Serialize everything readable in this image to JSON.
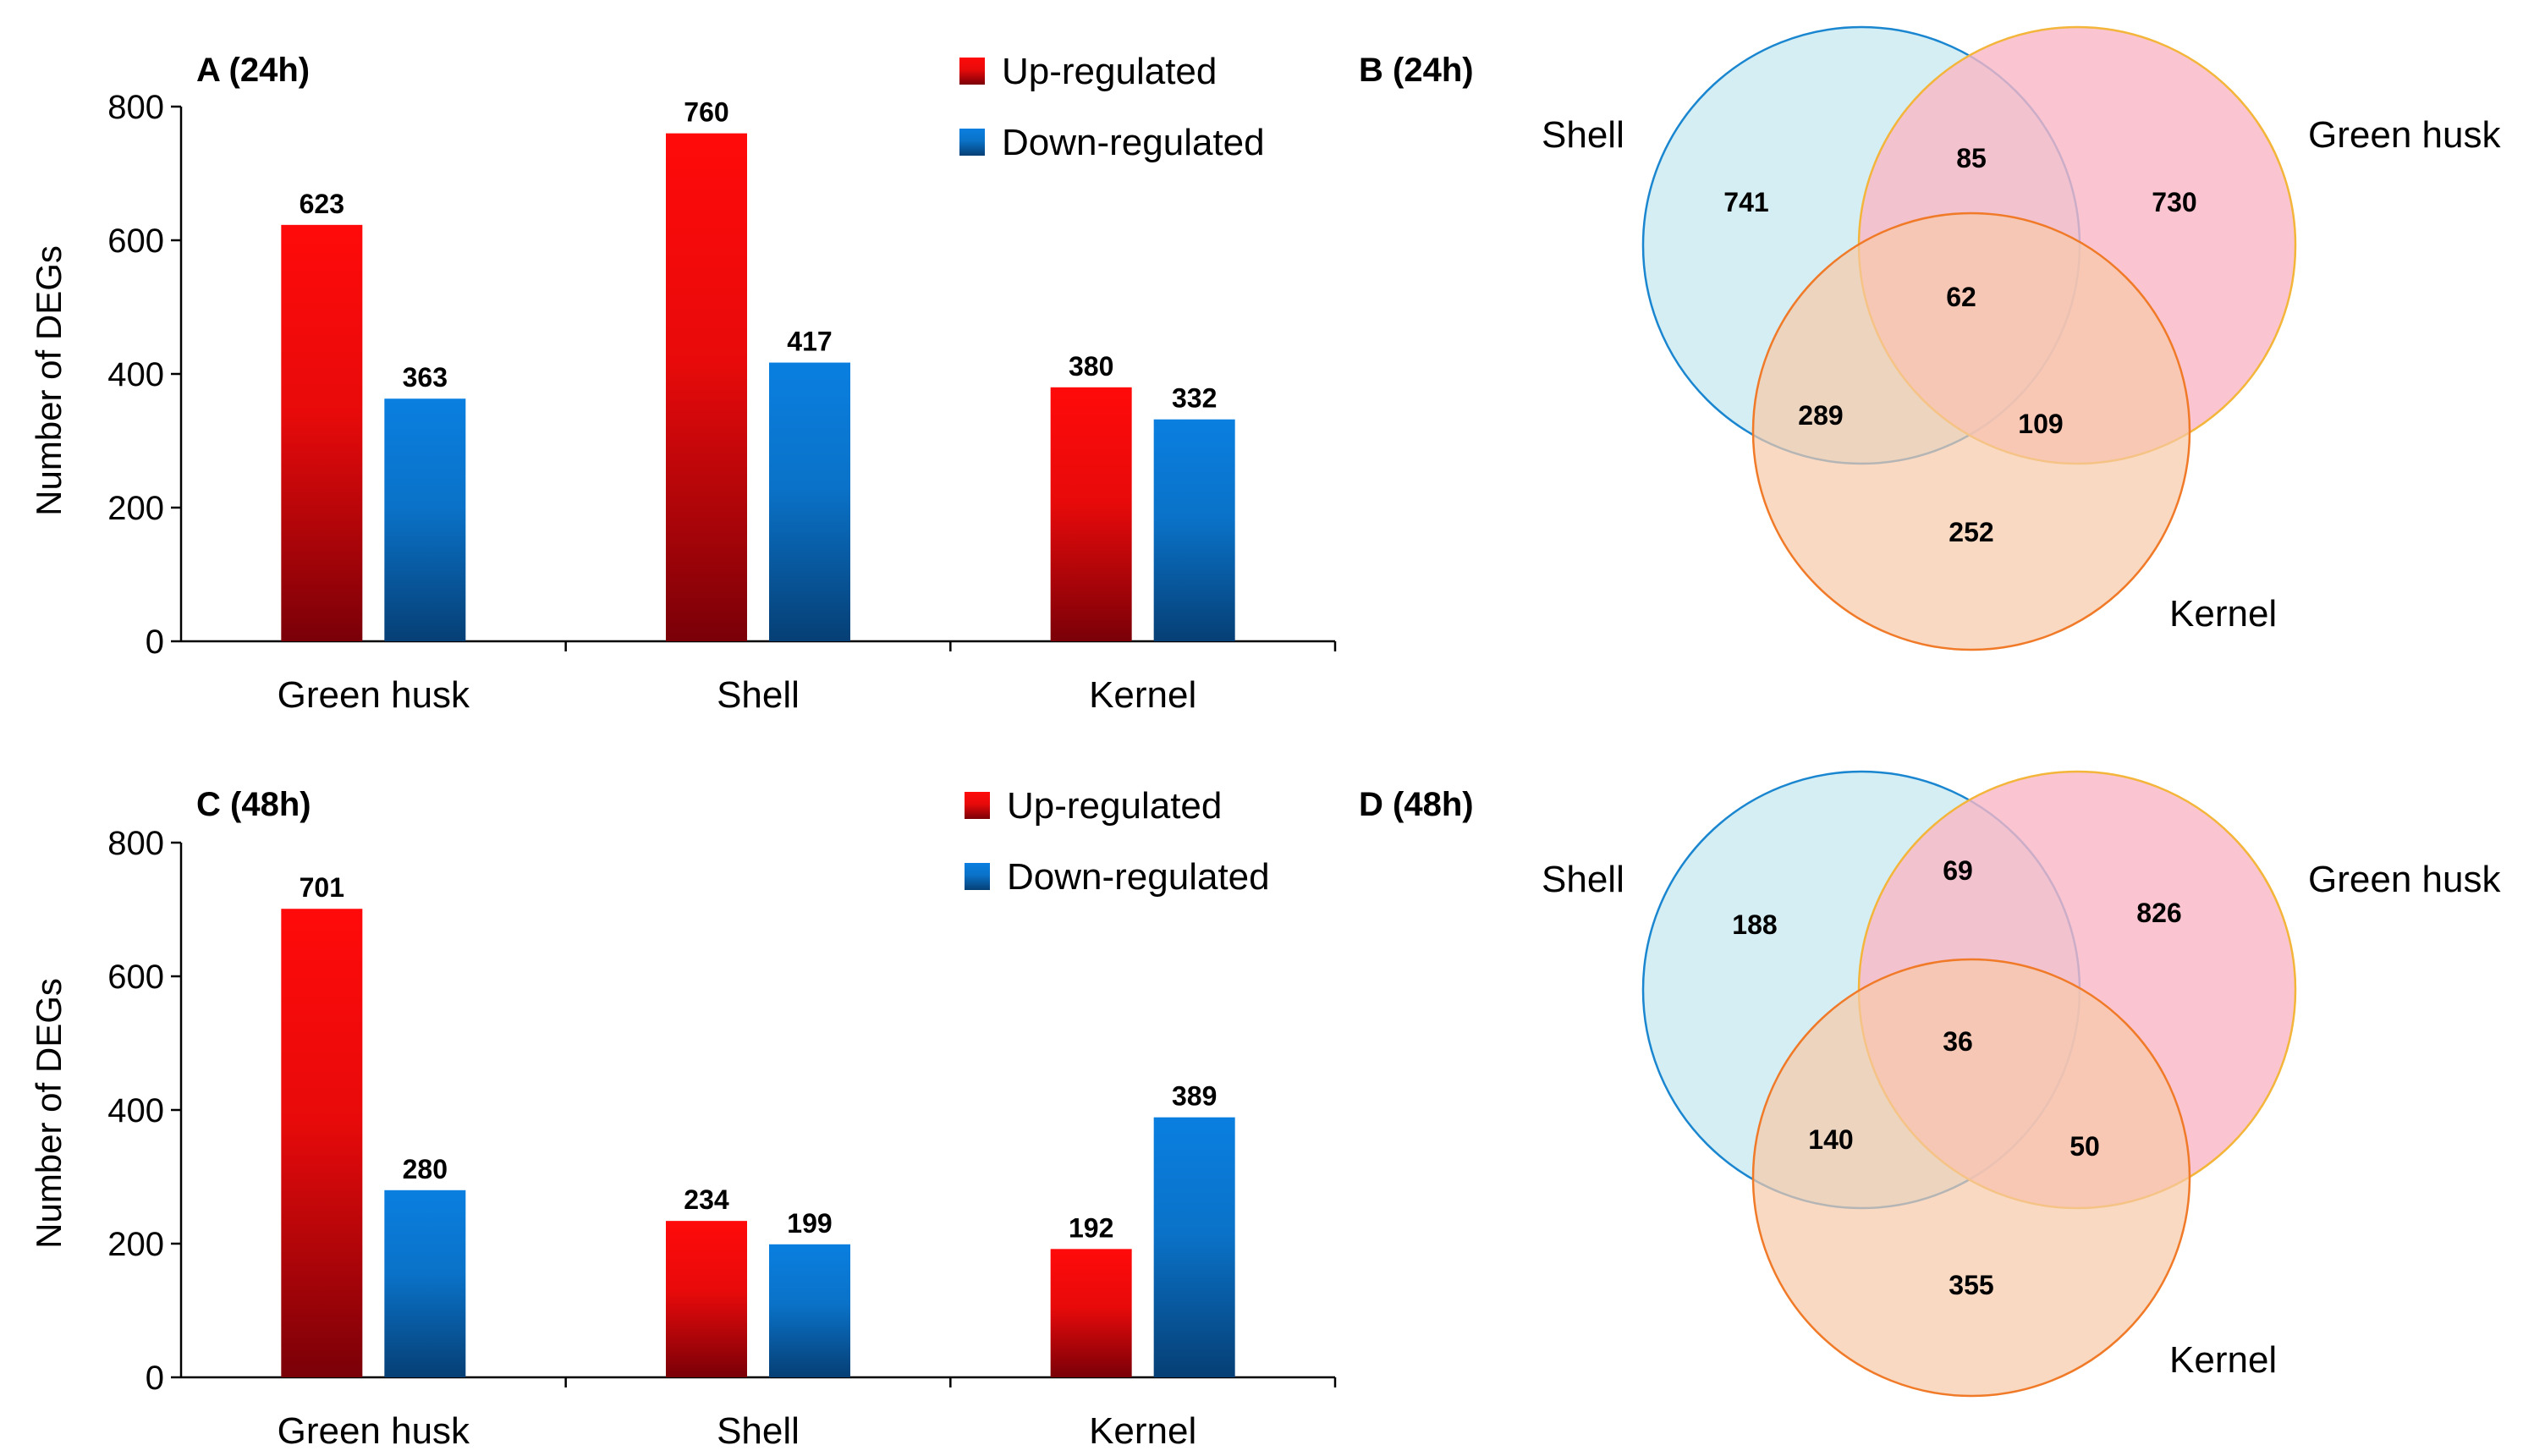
{
  "colors": {
    "up_top": "#ff0a0a",
    "up_bottom": "#7a0008",
    "down_top": "#0a7fe0",
    "down_bottom": "#063f75",
    "shell_fill": "#cdebf2",
    "shell_stroke": "#1a86d0",
    "husk_fill": "#f9b7c6",
    "husk_stroke": "#f3b53a",
    "kernel_fill": "#f6c9a8",
    "kernel_stroke": "#f07a28"
  },
  "chart_data": [
    {
      "type": "bar",
      "title": "A (24h)",
      "categories": [
        "Green husk",
        "Shell",
        "Kernel"
      ],
      "series": [
        {
          "name": "Up-regulated",
          "values": [
            623,
            760,
            380
          ]
        },
        {
          "name": "Down-regulated",
          "values": [
            363,
            417,
            332
          ]
        }
      ],
      "ylabel": "Number of DEGs",
      "xlabel": "",
      "ylim": [
        0,
        800
      ],
      "yticks": [
        "0",
        "200",
        "400",
        "600",
        "800"
      ],
      "legend": "top-right"
    },
    {
      "type": "bar",
      "title": "C (48h)",
      "categories": [
        "Green husk",
        "Shell",
        "Kernel"
      ],
      "series": [
        {
          "name": "Up-regulated",
          "values": [
            701,
            234,
            192
          ]
        },
        {
          "name": "Down-regulated",
          "values": [
            280,
            199,
            389
          ]
        }
      ],
      "ylabel": "Number of DEGs",
      "xlabel": "",
      "ylim": [
        0,
        800
      ],
      "yticks": [
        "0",
        "200",
        "400",
        "600",
        "800"
      ],
      "legend": "top-right"
    },
    {
      "type": "venn",
      "title": "B (24h)",
      "sets": [
        "Shell",
        "Green husk",
        "Kernel"
      ],
      "regions": {
        "shell_only": "741",
        "husk_only": "730",
        "kernel_only": "252",
        "shell_husk": "85",
        "shell_kernel": "289",
        "husk_kernel": "109",
        "all": "62"
      }
    },
    {
      "type": "venn",
      "title": "D (48h)",
      "sets": [
        "Shell",
        "Green husk",
        "Kernel"
      ],
      "regions": {
        "shell_only": "188",
        "husk_only": "826",
        "kernel_only": "355",
        "shell_husk": "69",
        "shell_kernel": "140",
        "husk_kernel": "50",
        "all": "36"
      }
    }
  ]
}
